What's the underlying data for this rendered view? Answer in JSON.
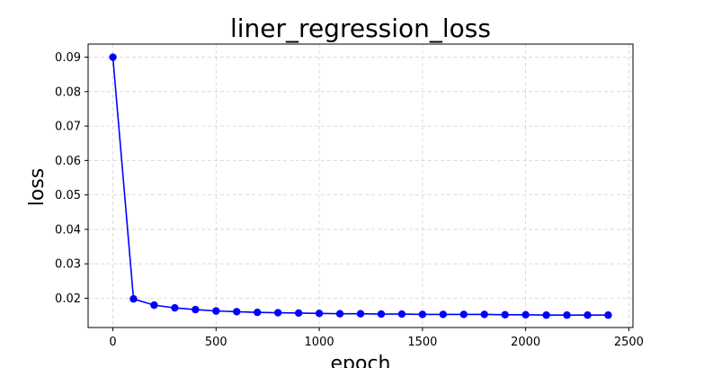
{
  "chart_data": {
    "type": "line",
    "title": "liner_regression_loss",
    "xlabel": "epoch",
    "ylabel": "loss",
    "xlim": [
      -120,
      2520
    ],
    "ylim": [
      0.0115,
      0.0938
    ],
    "xticks": [
      0,
      500,
      1000,
      1500,
      2000,
      2500
    ],
    "yticks": [
      0.02,
      0.03,
      0.04,
      0.05,
      0.06,
      0.07,
      0.08,
      0.09
    ],
    "grid": true,
    "grid_style": "dashed",
    "legend": "none",
    "series": [
      {
        "color": "#0000ff",
        "marker": "circle",
        "x": [
          0,
          100,
          200,
          300,
          400,
          500,
          600,
          700,
          800,
          900,
          1000,
          1100,
          1200,
          1300,
          1400,
          1500,
          1600,
          1700,
          1800,
          1900,
          2000,
          2100,
          2200,
          2300,
          2400
        ],
        "y": [
          0.09,
          0.0198,
          0.018,
          0.0172,
          0.0167,
          0.0163,
          0.0161,
          0.0159,
          0.0158,
          0.0157,
          0.0156,
          0.0155,
          0.0155,
          0.0154,
          0.0154,
          0.0153,
          0.0153,
          0.0153,
          0.0153,
          0.0152,
          0.0152,
          0.0151,
          0.0151,
          0.0151,
          0.0151
        ]
      }
    ]
  }
}
